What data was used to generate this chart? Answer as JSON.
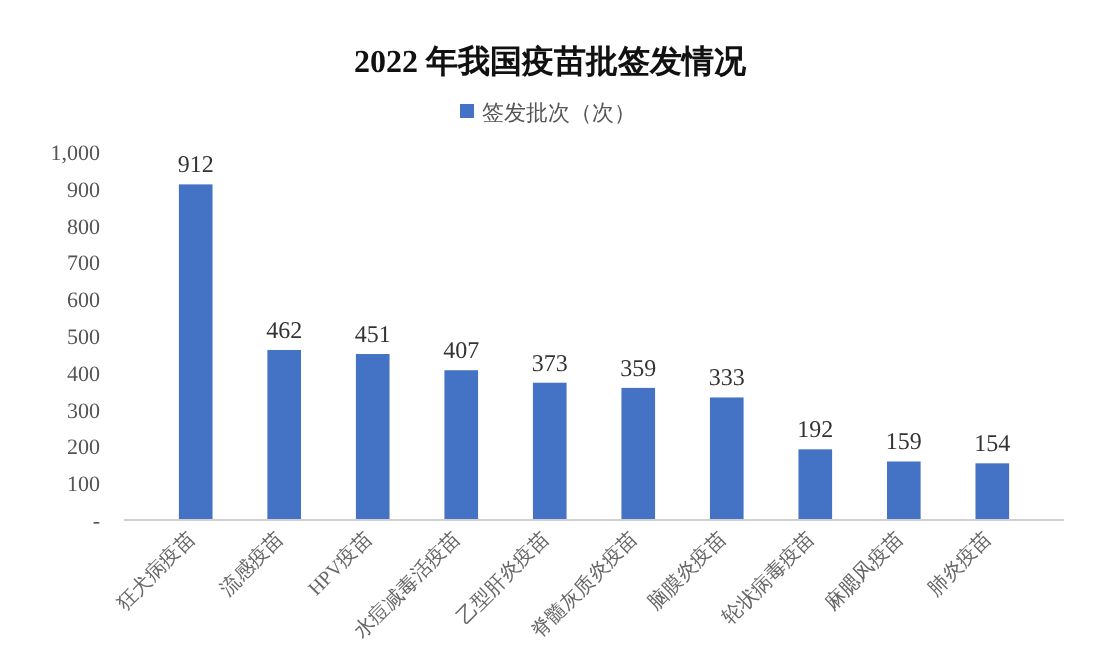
{
  "chart_data": {
    "type": "bar",
    "title": "2022 年我国疫苗批签发情况",
    "categories": [
      "狂犬病疫苗",
      "流感疫苗",
      "HPV疫苗",
      "水痘减毒活疫苗",
      "乙型肝炎疫苗",
      "脊髓灰质炎疫苗",
      "脑膜炎疫苗",
      "轮状病毒疫苗",
      "麻腮风疫苗",
      "肺炎疫苗"
    ],
    "series": [
      {
        "name": "签发批次（次）",
        "color": "#4472c4",
        "values": [
          912,
          462,
          451,
          407,
          373,
          359,
          333,
          192,
          159,
          154
        ]
      }
    ],
    "ylim": [
      0,
      1000
    ],
    "yticks": [
      {
        "value": 0,
        "label": "-"
      },
      100,
      200,
      300,
      400,
      500,
      600,
      700,
      800,
      900,
      {
        "value": 1000,
        "label": "1,000"
      }
    ],
    "data_labels": true,
    "legend": "top",
    "grid": false
  }
}
